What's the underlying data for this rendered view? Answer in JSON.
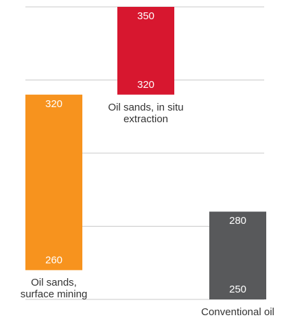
{
  "chart_data": {
    "type": "range_bar",
    "categories": [
      "Oil sands, surface mining",
      "Oil sands, in situ extraction",
      "Conventional oil"
    ],
    "ranges": [
      [
        260,
        320
      ],
      [
        320,
        350
      ],
      [
        250,
        280
      ]
    ],
    "colors": [
      "#f7931e",
      "#d7172f",
      "#58595b"
    ],
    "ylim": [
      250,
      350
    ],
    "yticks": [
      250,
      275,
      300,
      325,
      350
    ],
    "grid": true
  }
}
